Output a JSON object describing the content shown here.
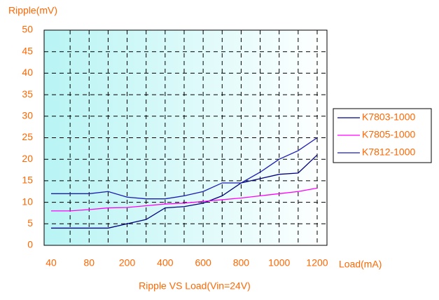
{
  "chart_data": {
    "type": "line",
    "title": "Ripple VS Load(Vin=24V)",
    "y_label": "Ripple(mV)",
    "x_label": "Load(mA)",
    "categories": [
      "40",
      null,
      "80",
      null,
      "200",
      null,
      "400",
      null,
      "600",
      null,
      "800",
      null,
      "1000",
      null,
      "1200"
    ],
    "series": [
      {
        "name": "K7803-1000",
        "color": "#000080",
        "values": [
          4,
          4,
          4,
          4,
          5,
          6,
          8.7,
          9,
          9.8,
          11.5,
          14.5,
          15.5,
          16.5,
          16.8,
          21
        ]
      },
      {
        "name": "K7805-1000",
        "color": "#ff00ff",
        "values": [
          8,
          8,
          8.3,
          8.7,
          8.8,
          9.2,
          9.6,
          9.8,
          10.2,
          10.6,
          11,
          11.5,
          12,
          12.5,
          13.3
        ]
      },
      {
        "name": "K7812-1000",
        "color": "#1c1cb4",
        "values": [
          12,
          12,
          12,
          12.5,
          11.2,
          10.8,
          10.8,
          11.5,
          12.5,
          14.5,
          14.5,
          17,
          20,
          22,
          25
        ]
      }
    ],
    "ylim": [
      0,
      50
    ],
    "yticks": [
      0,
      5,
      10,
      15,
      20,
      25,
      30,
      35,
      40,
      45,
      50
    ],
    "grid": true,
    "legend": "right"
  }
}
